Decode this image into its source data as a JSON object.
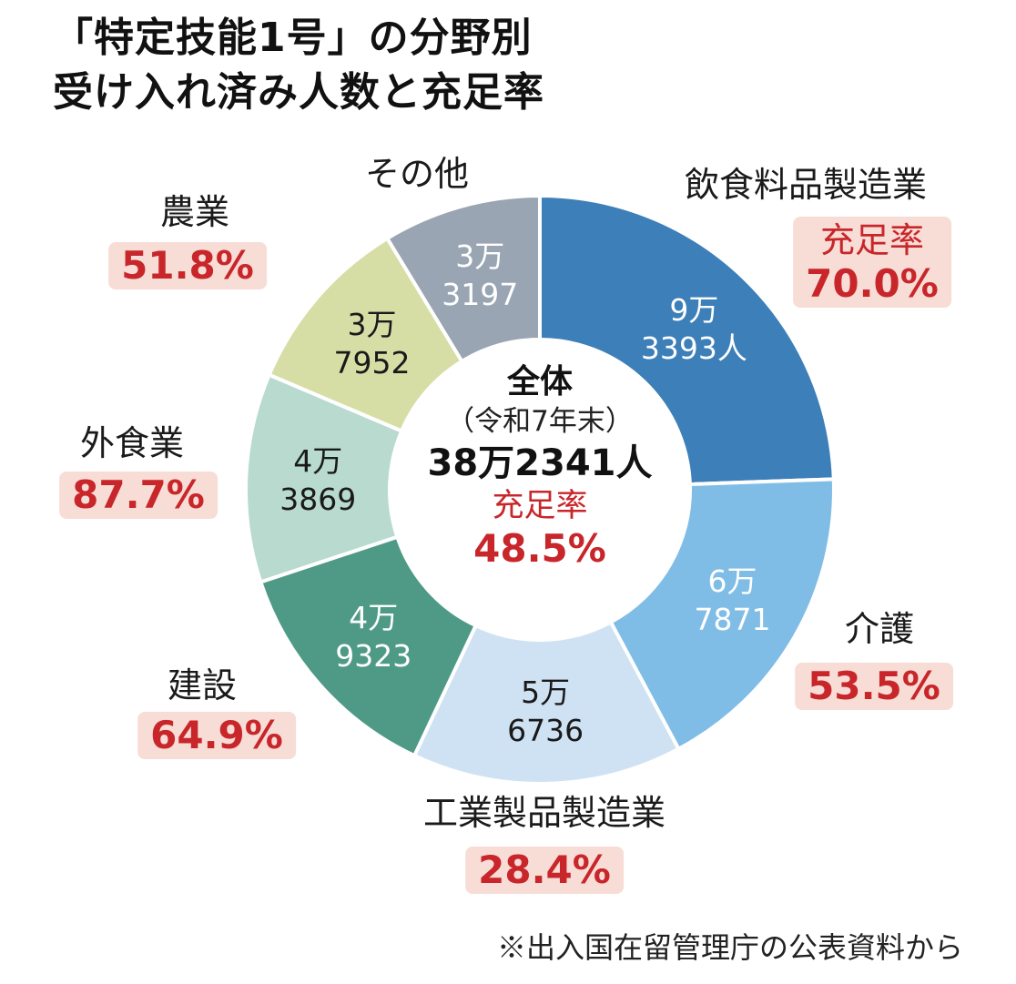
{
  "title_lines": [
    "「特定技能1号」の分野別",
    "受け入れ済み人数と充足率"
  ],
  "center": {
    "label": "全体",
    "date": "（令和7年末）",
    "total": "38万2341人",
    "rate_label": "充足率",
    "rate": "48.5%"
  },
  "source_note": "※出入国在留管理庁の公表資料から",
  "colors": {
    "rate_text": "#c8262a",
    "rate_bg": "#f7ddd6"
  },
  "chart_data": {
    "type": "pie",
    "style": "donut",
    "categories": [
      "飲食料品製造業",
      "介護",
      "工業製品製造業",
      "建設",
      "外食業",
      "農業",
      "その他"
    ],
    "values": [
      93393,
      67871,
      56736,
      49323,
      43869,
      37952,
      33197
    ],
    "value_labels": [
      [
        "9万",
        "3393人"
      ],
      [
        "6万",
        "7871"
      ],
      [
        "5万",
        "6736"
      ],
      [
        "4万",
        "9323"
      ],
      [
        "4万",
        "3869"
      ],
      [
        "3万",
        "7952"
      ],
      [
        "3万",
        "3197"
      ]
    ],
    "fill_rates": [
      "70.0%",
      "53.5%",
      "28.4%",
      "64.9%",
      "87.7%",
      "51.8%",
      null
    ],
    "fill_rate_label": "充足率",
    "colors": [
      "#3d7fb8",
      "#80bde6",
      "#cfe2f3",
      "#4f9a86",
      "#b9dace",
      "#d6dea6",
      "#9aa5b3"
    ],
    "value_text_colors": [
      "#ffffff",
      "#ffffff",
      "#1a1a1a",
      "#ffffff",
      "#1a1a1a",
      "#1a1a1a",
      "#ffffff"
    ]
  }
}
